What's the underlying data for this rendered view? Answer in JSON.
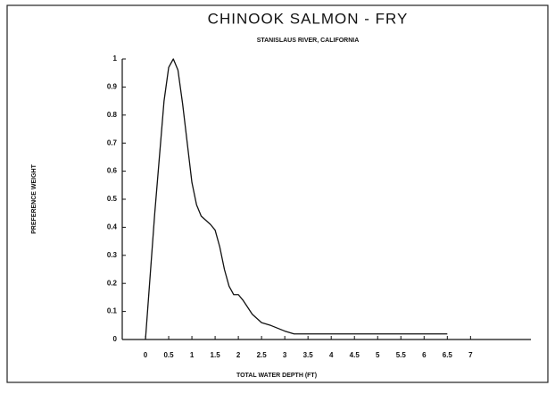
{
  "chart_data": {
    "type": "line",
    "title": "CHINOOK SALMON - FRY",
    "subtitle": "STANISLAUS RIVER, CALIFORNIA",
    "x_label": "TOTAL WATER DEPTH (FT)",
    "y_label": "PREFERENCE WEIGHT",
    "x": [
      0,
      0.2,
      0.4,
      0.5,
      0.6,
      0.7,
      0.8,
      0.9,
      1.0,
      1.1,
      1.2,
      1.4,
      1.5,
      1.6,
      1.7,
      1.8,
      1.9,
      2.0,
      2.1,
      2.3,
      2.5,
      2.7,
      3.0,
      3.2,
      4.0,
      5.0,
      6.0,
      6.5
    ],
    "series": [
      {
        "name": "Fry",
        "color": "#111111",
        "values": [
          0,
          0.45,
          0.85,
          0.97,
          1.0,
          0.96,
          0.84,
          0.7,
          0.56,
          0.48,
          0.44,
          0.41,
          0.39,
          0.33,
          0.25,
          0.19,
          0.16,
          0.16,
          0.14,
          0.09,
          0.06,
          0.05,
          0.03,
          0.02,
          0.02,
          0.02,
          0.02,
          0.02
        ]
      }
    ],
    "xlim": [
      -0.5,
      8.3
    ],
    "ylim": [
      0,
      1
    ],
    "xticks": [
      0,
      0.5,
      1,
      1.5,
      2,
      2.5,
      3,
      3.5,
      4,
      4.5,
      5,
      5.5,
      6,
      6.5,
      7
    ],
    "yticks": [
      0,
      0.1,
      0.2,
      0.3,
      0.4,
      0.5,
      0.6,
      0.7,
      0.8,
      0.9,
      1
    ]
  }
}
